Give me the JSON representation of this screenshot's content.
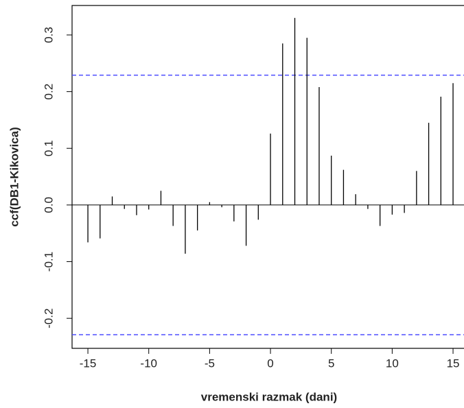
{
  "chart_data": {
    "type": "stem",
    "x_label": "vremenski razmak (dani)",
    "y_label": "ccf(DB1-Kikovica)",
    "x": [
      -15,
      -14,
      -13,
      -12,
      -11,
      -10,
      -9,
      -8,
      -7,
      -6,
      -5,
      -4,
      -3,
      -2,
      -1,
      0,
      1,
      2,
      3,
      4,
      5,
      6,
      7,
      8,
      9,
      10,
      11,
      12,
      13,
      14,
      15
    ],
    "values": [
      -0.066,
      -0.059,
      0.015,
      -0.007,
      -0.018,
      -0.008,
      0.025,
      -0.037,
      -0.086,
      -0.045,
      0.005,
      -0.004,
      -0.029,
      -0.072,
      -0.026,
      0.126,
      0.285,
      0.33,
      0.295,
      0.208,
      0.087,
      0.062,
      0.019,
      -0.007,
      -0.037,
      -0.017,
      -0.014,
      0.06,
      0.145,
      0.191,
      0.215
    ],
    "color": "#000000",
    "confidence_bounds": [
      -0.229,
      0.229
    ],
    "confidence_color": "#4d4dff",
    "xlim": [
      -16.3,
      15.9
    ],
    "ylim": [
      -0.253,
      0.352
    ],
    "xticks": [
      -15,
      -10,
      -5,
      0,
      5,
      10,
      15
    ],
    "yticks": [
      -0.2,
      -0.1,
      {
        "value": 0,
        "label": "0.0"
      },
      0.1,
      0.2,
      0.3
    ]
  }
}
